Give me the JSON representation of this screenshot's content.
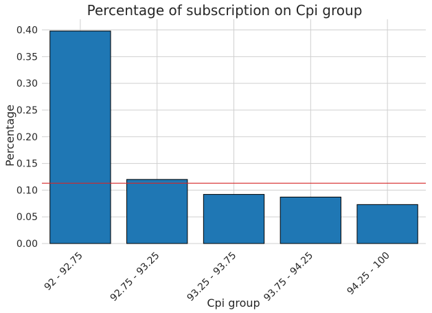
{
  "chart_data": {
    "type": "bar",
    "title": "Percentage of subscription on Cpi group",
    "xlabel": "Cpi group",
    "ylabel": "Percentage",
    "categories": [
      "92 - 92.75",
      "92.75 - 93.25",
      "93.25 - 93.75",
      "93.75 - 94.25",
      "94.25 - 100"
    ],
    "values": [
      0.398,
      0.12,
      0.092,
      0.087,
      0.073
    ],
    "ylim": [
      0,
      0.42
    ],
    "yticks": [
      "0.00",
      "0.05",
      "0.10",
      "0.15",
      "0.20",
      "0.25",
      "0.30",
      "0.35",
      "0.40"
    ],
    "reference_line": 0.113,
    "grid": true,
    "colors": {
      "bar": "#1f77b4",
      "reference_line": "#d62728"
    }
  }
}
